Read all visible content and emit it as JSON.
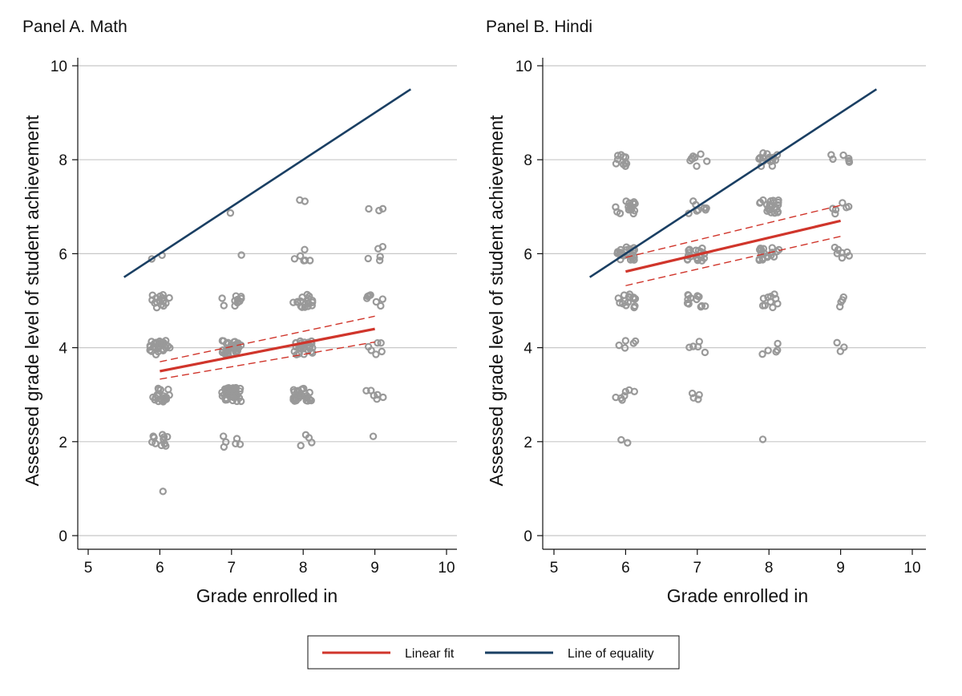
{
  "legend": {
    "items": [
      {
        "label": "Linear fit",
        "color": "#d0352b"
      },
      {
        "label": "Line of equality",
        "color": "#1a3f63"
      }
    ],
    "placement": "bottom-center"
  },
  "colors": {
    "points": "#999999",
    "grid": "#c8c8c8",
    "fit": "#d0352b",
    "equality": "#1a3f63"
  },
  "chart_data": [
    {
      "type": "scatter",
      "title": "Panel A. Math",
      "xlabel": "Grade enrolled in",
      "ylabel": "Assessed grade level of student achievement",
      "xlim": [
        5,
        10
      ],
      "ylim": [
        0,
        10
      ],
      "xticks": [
        "5",
        "6",
        "7",
        "8",
        "9",
        "10"
      ],
      "yticks": [
        "0",
        "2",
        "4",
        "6",
        "8",
        "10"
      ],
      "grid": "horizontal",
      "linear_fit": {
        "x": [
          6,
          9
        ],
        "y": [
          3.5,
          4.4
        ],
        "ci_low": [
          3.33,
          4.12
        ],
        "ci_high": [
          3.7,
          4.67
        ]
      },
      "equality_line": {
        "x": [
          5.5,
          9.5
        ],
        "y": [
          5.5,
          9.5
        ]
      },
      "points": [
        {
          "grade": 6,
          "level": 1,
          "n": 1
        },
        {
          "grade": 6,
          "level": 2,
          "n": 12
        },
        {
          "grade": 6,
          "level": 3,
          "n": 20
        },
        {
          "grade": 6,
          "level": 4,
          "n": 30
        },
        {
          "grade": 6,
          "level": 5,
          "n": 16
        },
        {
          "grade": 6,
          "level": 6,
          "n": 2
        },
        {
          "grade": 7,
          "level": 2,
          "n": 6
        },
        {
          "grade": 7,
          "level": 3,
          "n": 38
        },
        {
          "grade": 7,
          "level": 4,
          "n": 34
        },
        {
          "grade": 7,
          "level": 5,
          "n": 10
        },
        {
          "grade": 7,
          "level": 6,
          "n": 1
        },
        {
          "grade": 7,
          "level": 7,
          "n": 1
        },
        {
          "grade": 8,
          "level": 2,
          "n": 4
        },
        {
          "grade": 8,
          "level": 3,
          "n": 26
        },
        {
          "grade": 8,
          "level": 4,
          "n": 28
        },
        {
          "grade": 8,
          "level": 5,
          "n": 18
        },
        {
          "grade": 8,
          "level": 6,
          "n": 6
        },
        {
          "grade": 8,
          "level": 7,
          "n": 2
        },
        {
          "grade": 9,
          "level": 2,
          "n": 1
        },
        {
          "grade": 9,
          "level": 3,
          "n": 6
        },
        {
          "grade": 9,
          "level": 4,
          "n": 6
        },
        {
          "grade": 9,
          "level": 5,
          "n": 7
        },
        {
          "grade": 9,
          "level": 6,
          "n": 5
        },
        {
          "grade": 9,
          "level": 7,
          "n": 3
        }
      ]
    },
    {
      "type": "scatter",
      "title": "Panel B. Hindi",
      "xlabel": "Grade enrolled in",
      "ylabel": "Assessed grade level of student achievement",
      "xlim": [
        5,
        10
      ],
      "ylim": [
        0,
        10
      ],
      "xticks": [
        "5",
        "6",
        "7",
        "8",
        "9",
        "10"
      ],
      "yticks": [
        "0",
        "2",
        "4",
        "6",
        "8",
        "10"
      ],
      "grid": "horizontal",
      "linear_fit": {
        "x": [
          6,
          9
        ],
        "y": [
          5.62,
          6.7
        ],
        "ci_low": [
          5.32,
          6.37
        ],
        "ci_high": [
          5.92,
          7.03
        ]
      },
      "equality_line": {
        "x": [
          5.5,
          9.5
        ],
        "y": [
          5.5,
          9.5
        ]
      },
      "points": [
        {
          "grade": 6,
          "level": 2,
          "n": 2
        },
        {
          "grade": 6,
          "level": 3,
          "n": 7
        },
        {
          "grade": 6,
          "level": 4,
          "n": 5
        },
        {
          "grade": 6,
          "level": 5,
          "n": 16
        },
        {
          "grade": 6,
          "level": 6,
          "n": 22
        },
        {
          "grade": 6,
          "level": 7,
          "n": 16
        },
        {
          "grade": 6,
          "level": 8,
          "n": 10
        },
        {
          "grade": 7,
          "level": 3,
          "n": 4
        },
        {
          "grade": 7,
          "level": 4,
          "n": 5
        },
        {
          "grade": 7,
          "level": 5,
          "n": 12
        },
        {
          "grade": 7,
          "level": 6,
          "n": 18
        },
        {
          "grade": 7,
          "level": 7,
          "n": 8
        },
        {
          "grade": 7,
          "level": 8,
          "n": 8
        },
        {
          "grade": 8,
          "level": 2,
          "n": 1
        },
        {
          "grade": 8,
          "level": 4,
          "n": 5
        },
        {
          "grade": 8,
          "level": 5,
          "n": 10
        },
        {
          "grade": 8,
          "level": 6,
          "n": 18
        },
        {
          "grade": 8,
          "level": 7,
          "n": 22
        },
        {
          "grade": 8,
          "level": 8,
          "n": 18
        },
        {
          "grade": 9,
          "level": 4,
          "n": 3
        },
        {
          "grade": 9,
          "level": 5,
          "n": 4
        },
        {
          "grade": 9,
          "level": 6,
          "n": 7
        },
        {
          "grade": 9,
          "level": 7,
          "n": 6
        },
        {
          "grade": 9,
          "level": 8,
          "n": 6
        }
      ]
    }
  ]
}
